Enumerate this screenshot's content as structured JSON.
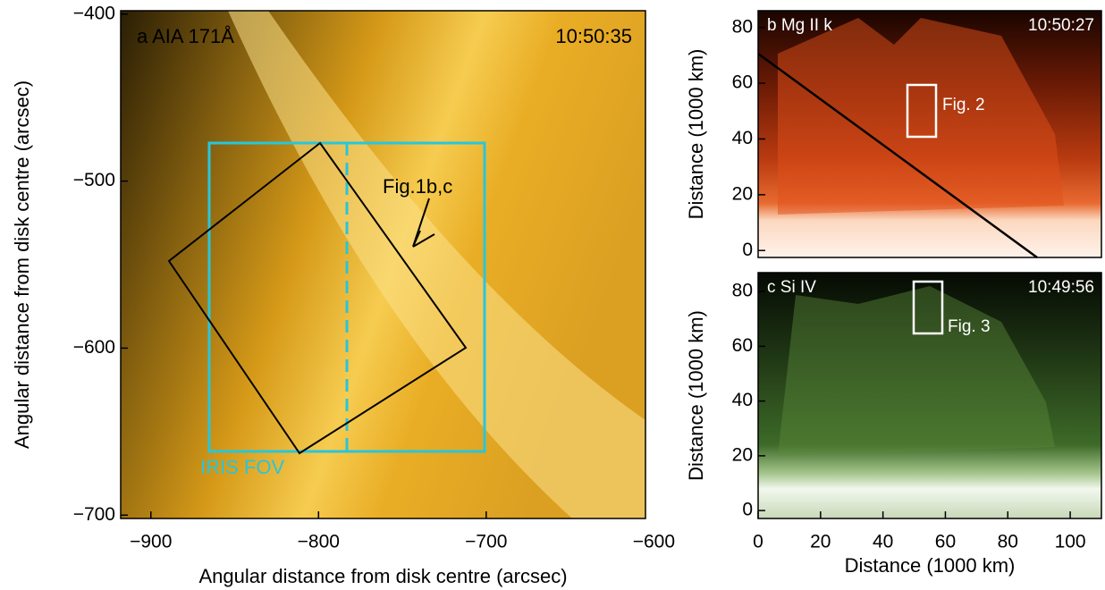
{
  "chart_data": [
    {
      "type": "image",
      "title": "a AIA 171Å",
      "time": "10:50:35",
      "xlabel": "Angular distance from disk centre (arcsec)",
      "ylabel": "Angular distance from disk centre (arcsec)",
      "xlim": [
        -918,
        -605
      ],
      "ylim": [
        -702,
        -398
      ],
      "xticks": [
        {
          "value": -900,
          "label": "−900"
        },
        {
          "value": -800,
          "label": "−800"
        },
        {
          "value": -700,
          "label": "−700"
        },
        {
          "value": -600,
          "label": "−600"
        }
      ],
      "yticks": [
        {
          "value": -400,
          "label": "−400"
        },
        {
          "value": -500,
          "label": "−500"
        },
        {
          "value": -600,
          "label": "−600"
        },
        {
          "value": -700,
          "label": "−700"
        }
      ],
      "annotations": [
        "IRIS FOV",
        "Fig.1b,c"
      ]
    },
    {
      "type": "image",
      "title": "b Mg II k",
      "time": "10:50:27",
      "ylabel": "Distance (1000 km)",
      "xlim": [
        0,
        110
      ],
      "ylim": [
        -2.5,
        86
      ],
      "yticks": [
        0,
        20,
        40,
        60,
        80
      ],
      "annotations": [
        "Fig. 2"
      ]
    },
    {
      "type": "image",
      "title": "c Si IV",
      "time": "10:49:56",
      "xlabel": "Distance (1000 km)",
      "ylabel": "Distance (1000 km)",
      "xlim": [
        0,
        110
      ],
      "ylim": [
        -2.9,
        86.9
      ],
      "xticks": [
        0,
        20,
        40,
        60,
        80,
        100
      ],
      "yticks": [
        0,
        20,
        40,
        60,
        80
      ],
      "annotations": [
        "Fig. 3"
      ]
    }
  ]
}
